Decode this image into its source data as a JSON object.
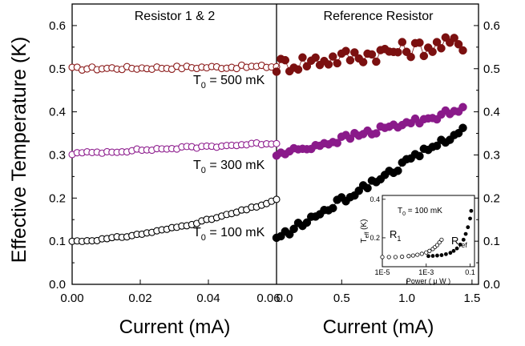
{
  "chart_data": [
    {
      "type": "scatter",
      "panel_title": "Resistor 1 & 2",
      "xlabel": "Current  (mA)",
      "ylabel": "Effective Temperature (K)",
      "xlim": [
        0,
        0.06
      ],
      "ylim": [
        0,
        0.65
      ],
      "x_ticks": [
        "0.00",
        "0.02",
        "0.04",
        "0.06"
      ],
      "y_ticks": [
        "0.0",
        "0.1",
        "0.2",
        "0.3",
        "0.4",
        "0.5",
        "0.6"
      ],
      "marker": "open-circle",
      "annotations": [
        {
          "T": "T",
          "sub": "0",
          "text": " = 500 mK"
        },
        {
          "T": "T",
          "sub": "0",
          "text": " = 300 mK"
        },
        {
          "T": "T",
          "sub": "0",
          "text": " = 100 mK"
        }
      ],
      "series": [
        {
          "color": "#8b1a1a",
          "x0": 0.0,
          "x1": 0.06,
          "n": 42,
          "y0": 0.5,
          "y1": 0.505,
          "noise": 0.004
        },
        {
          "color": "#8e1e8e",
          "x0": 0.0,
          "x1": 0.06,
          "n": 42,
          "y0": 0.303,
          "y1": 0.328,
          "noise": 0.003
        },
        {
          "color": "#000000",
          "x0": 0.0,
          "x1": 0.06,
          "n": 42,
          "y0": 0.1,
          "y1": 0.195,
          "curve": 1.6,
          "noise": 0.002
        }
      ]
    },
    {
      "type": "scatter",
      "panel_title": "Reference Resistor",
      "xlabel": "Current (mA)",
      "xlim": [
        0,
        1.55
      ],
      "ylim": [
        0,
        0.65
      ],
      "x_ticks": [
        "0.0",
        "0.5",
        "1.0",
        "1.5"
      ],
      "y_ticks": [
        "0.0",
        "0.1",
        "0.2",
        "0.3",
        "0.4",
        "0.5",
        "0.6"
      ],
      "marker": "filled-circle",
      "series": [
        {
          "color": "#7b1010",
          "x0": 0.0,
          "x1": 1.43,
          "n": 44,
          "y0": 0.508,
          "y1": 0.56,
          "noise": 0.02
        },
        {
          "color": "#8a1a8a",
          "x0": 0.0,
          "x1": 1.43,
          "n": 44,
          "y0": 0.3,
          "y1": 0.405,
          "noise": 0.008
        },
        {
          "color": "#000000",
          "x0": 0.0,
          "x1": 1.43,
          "n": 44,
          "y0": 0.105,
          "y1": 0.36,
          "noise": 0.008
        }
      ],
      "inset": {
        "T0_T": "T",
        "T0_sub": "0",
        "T0_text": " = 100 mK",
        "ylabel_T": "T",
        "ylabel_sub": "eff",
        "ylabel_unit": "(K)",
        "xlabel": "Power ( μ W )",
        "x_ticks": [
          "1E-5",
          "1E-3",
          "0.1"
        ],
        "y_ticks": [
          "0.2",
          "0.4"
        ],
        "log_x": true,
        "xlim_log10": [
          -5,
          -0.8
        ],
        "ylim": [
          0.05,
          0.42
        ],
        "label_r1": "R",
        "label_r1_sub": "1",
        "label_rref": "R",
        "label_rref_sub": "ref",
        "series": [
          {
            "name": "R1",
            "marker": "open-circle",
            "x_log10": [
              -5.0,
              -4.7,
              -4.4,
              -4.1,
              -3.8,
              -3.6,
              -3.4,
              -3.2,
              -3.0,
              -2.85,
              -2.7,
              -2.6,
              -2.5,
              -2.4,
              -2.3
            ],
            "y": [
              0.1,
              0.1,
              0.1,
              0.102,
              0.105,
              0.108,
              0.112,
              0.117,
              0.124,
              0.132,
              0.142,
              0.152,
              0.162,
              0.176,
              0.19
            ]
          },
          {
            "name": "Rref",
            "marker": "filled-circle",
            "x_log10": [
              -2.9,
              -2.7,
              -2.5,
              -2.3,
              -2.1,
              -1.9,
              -1.75,
              -1.6,
              -1.45,
              -1.3,
              -1.2,
              -1.1,
              -1.0,
              -0.95
            ],
            "y": [
              0.105,
              0.106,
              0.108,
              0.11,
              0.115,
              0.122,
              0.132,
              0.145,
              0.165,
              0.19,
              0.22,
              0.255,
              0.3,
              0.34
            ]
          }
        ]
      }
    }
  ]
}
